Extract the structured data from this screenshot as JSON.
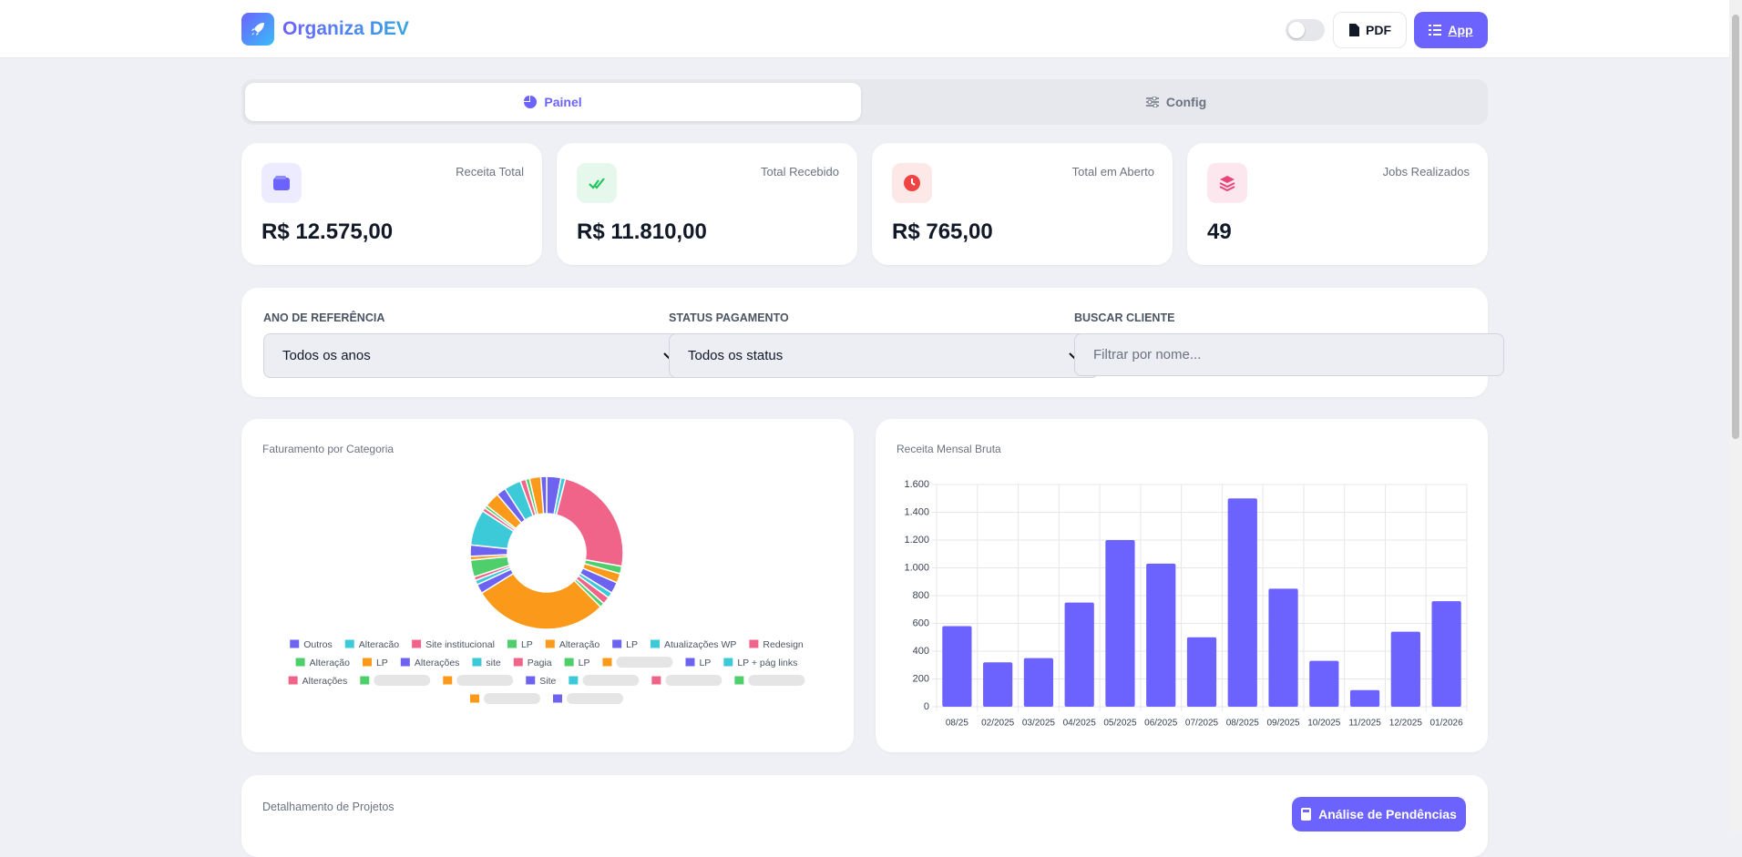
{
  "header": {
    "brand": "Organiza DEV",
    "pdf_button": "PDF",
    "app_button": "App"
  },
  "tabs": [
    "Painel",
    "Config"
  ],
  "cards": [
    {
      "label": "Receita Total",
      "value": "R$ 12.575,00"
    },
    {
      "label": "Total Recebido",
      "value": "R$ 11.810,00"
    },
    {
      "label": "Total em Aberto",
      "value": "R$ 765,00"
    },
    {
      "label": "Jobs Realizados",
      "value": 49
    }
  ],
  "filters": [
    {
      "label": "ANO DE REFERÊNCIA",
      "value": "Todos os anos"
    },
    {
      "label": "STATUS PAGAMENTO",
      "value": "Todos os status"
    },
    {
      "label": "BUSCAR CLIENTE",
      "placeholder": "Filtrar por nome..."
    }
  ],
  "chart_data": [
    {
      "type": "doughnut",
      "title": "Faturamento por Categoria",
      "categories": [
        "Outros",
        "Alteracão",
        "Site institucional",
        "LP",
        "Alteração",
        "LP",
        "Atualizações WP",
        "Redesign",
        "Alteração",
        "LP",
        "Alterações",
        "site",
        "Pagia",
        "LP",
        null,
        "LP",
        "LP + pág links",
        "Alterações",
        null,
        null,
        "Site",
        null,
        null,
        null,
        null,
        null
      ],
      "values": [
        380,
        120,
        3000,
        200,
        250,
        300,
        150,
        200,
        120,
        3600,
        250,
        120,
        100,
        450,
        100,
        300,
        950,
        100,
        80,
        400,
        250,
        450,
        150,
        100,
        300,
        155
      ],
      "colors": [
        "#6c63f0",
        "#3cc9d8",
        "#f1648a",
        "#4fcf6b",
        "#fb9a1a"
      ]
    },
    {
      "type": "bar",
      "title": "Receita Mensal Bruta",
      "categories": [
        "08/25",
        "02/2025",
        "03/2025",
        "04/2025",
        "05/2025",
        "06/2025",
        "07/2025",
        "08/2025",
        "09/2025",
        "10/2025",
        "11/2025",
        "12/2025",
        "01/2026"
      ],
      "values": [
        580,
        320,
        350,
        750,
        1200,
        1030,
        500,
        1500,
        850,
        330,
        120,
        540,
        760
      ],
      "color": "#6c63ff",
      "ylim": [
        0,
        1600
      ],
      "yticks": [
        0,
        200,
        400,
        600,
        800,
        {
          "value": 1000,
          "label": "1.000"
        },
        {
          "value": 1200,
          "label": "1.200"
        },
        {
          "value": 1400,
          "label": "1.400"
        },
        {
          "value": 1600,
          "label": "1.600"
        }
      ],
      "grid": true
    }
  ],
  "projects": {
    "title": "Detalhamento de Projetos",
    "button": "Análise de Pendências"
  }
}
